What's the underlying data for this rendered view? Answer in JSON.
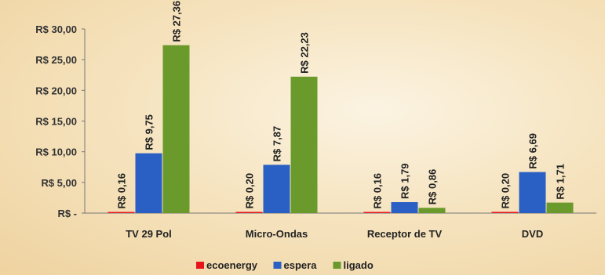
{
  "chart_data": {
    "type": "bar",
    "categories": [
      "TV 29 Pol",
      "Micro-Ondas",
      "Receptor de TV",
      "DVD"
    ],
    "series": [
      {
        "name": "ecoenergy",
        "values": [
          0.16,
          0.2,
          0.16,
          0.2
        ],
        "labels": [
          "R$ 0,16",
          "R$ 0,20",
          "R$ 0,16",
          "R$ 0,20"
        ],
        "color": "#e8141c"
      },
      {
        "name": "espera",
        "values": [
          9.75,
          7.87,
          1.79,
          6.69
        ],
        "labels": [
          "R$ 9,75",
          "R$ 7,87",
          "R$ 1,79",
          "R$ 6,69"
        ],
        "color": "#2a5fc4"
      },
      {
        "name": "ligado",
        "values": [
          27.36,
          22.23,
          0.86,
          1.71
        ],
        "labels": [
          "R$ 27,36",
          "R$ 22,23",
          "R$ 0,86",
          "R$ 1,71"
        ],
        "color": "#6b9a2c"
      }
    ],
    "ylim": [
      0,
      30
    ],
    "yticks": [
      0,
      5,
      10,
      15,
      20,
      25,
      30
    ],
    "ytick_labels": [
      "R$ -",
      "R$ 5,00",
      "R$ 10,00",
      "R$ 15,00",
      "R$ 20,00",
      "R$ 25,00",
      "R$ 30,00"
    ],
    "legend_position": "bottom",
    "grid": false,
    "title": "",
    "xlabel": "",
    "ylabel": ""
  }
}
